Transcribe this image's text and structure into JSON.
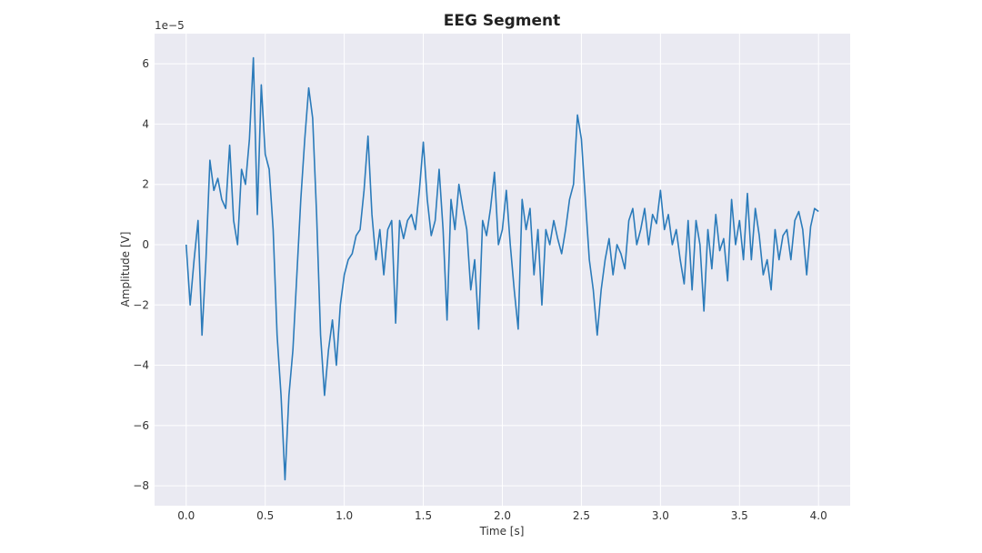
{
  "chart_data": {
    "type": "line",
    "title": "EEG Segment",
    "xlabel": "Time [s]",
    "ylabel": "Amplitude [V]",
    "y_offset_label": "1e−5",
    "xlim": [
      -0.2,
      4.2
    ],
    "ylim": [
      -8.66,
      7.0
    ],
    "xticks": [
      {
        "value": 0,
        "label": "0.0"
      },
      0.5,
      {
        "value": 1,
        "label": "1.0"
      },
      1.5,
      {
        "value": 2,
        "label": "2.0"
      },
      2.5,
      {
        "value": 3,
        "label": "3.0"
      },
      3.5,
      {
        "value": 4,
        "label": "4.0"
      }
    ],
    "yticks": [
      {
        "value": -8,
        "label": "−8"
      },
      {
        "value": -6,
        "label": "−6"
      },
      {
        "value": -4,
        "label": "−4"
      },
      {
        "value": -2,
        "label": "−2"
      },
      0,
      2,
      4,
      6
    ],
    "grid": true,
    "x": [
      0,
      0.025,
      0.05,
      0.075,
      0.1,
      0.125,
      0.15,
      0.175,
      0.2,
      0.225,
      0.25,
      0.275,
      0.3,
      0.325,
      0.35,
      0.375,
      0.4,
      0.425,
      0.45,
      0.475,
      0.5,
      0.525,
      0.55,
      0.575,
      0.6,
      0.625,
      0.65,
      0.675,
      0.7,
      0.725,
      0.75,
      0.775,
      0.8,
      0.825,
      0.85,
      0.875,
      0.9,
      0.925,
      0.95,
      0.975,
      1,
      1.025,
      1.05,
      1.075,
      1.1,
      1.125,
      1.15,
      1.175,
      1.2,
      1.225,
      1.25,
      1.275,
      1.3,
      1.325,
      1.35,
      1.375,
      1.4,
      1.425,
      1.45,
      1.475,
      1.5,
      1.525,
      1.55,
      1.575,
      1.6,
      1.625,
      1.65,
      1.675,
      1.7,
      1.725,
      1.75,
      1.775,
      1.8,
      1.825,
      1.85,
      1.875,
      1.9,
      1.925,
      1.95,
      1.975,
      2,
      2.025,
      2.05,
      2.075,
      2.1,
      2.125,
      2.15,
      2.175,
      2.2,
      2.225,
      2.25,
      2.275,
      2.3,
      2.325,
      2.35,
      2.375,
      2.4,
      2.425,
      2.45,
      2.475,
      2.5,
      2.525,
      2.55,
      2.575,
      2.6,
      2.625,
      2.65,
      2.675,
      2.7,
      2.725,
      2.75,
      2.775,
      2.8,
      2.825,
      2.85,
      2.875,
      2.9,
      2.925,
      2.95,
      2.975,
      3,
      3.025,
      3.05,
      3.075,
      3.1,
      3.125,
      3.15,
      3.175,
      3.2,
      3.225,
      3.25,
      3.275,
      3.3,
      3.325,
      3.35,
      3.375,
      3.4,
      3.425,
      3.45,
      3.475,
      3.5,
      3.525,
      3.55,
      3.575,
      3.6,
      3.625,
      3.65,
      3.675,
      3.7,
      3.725,
      3.75,
      3.775,
      3.8,
      3.825,
      3.85,
      3.875,
      3.9,
      3.925,
      3.95,
      3.975,
      4
    ],
    "series": [
      {
        "color": "#2b7bba",
        "values": [
          0,
          -2,
          -0.5,
          0.8,
          -3,
          -0.5,
          2.8,
          1.8,
          2.2,
          1.5,
          1.2,
          3.3,
          0.8,
          0,
          2.5,
          2.0,
          3.5,
          6.2,
          1.0,
          5.3,
          3.0,
          2.5,
          0.5,
          -3,
          -5,
          -7.8,
          -5,
          -3.5,
          -1,
          1.5,
          3.5,
          5.2,
          4.2,
          1,
          -3,
          -5,
          -3.5,
          -2.5,
          -4,
          -2,
          -1,
          -0.5,
          -0.3,
          0.3,
          0.5,
          1.8,
          3.6,
          1,
          -0.5,
          0.5,
          -1,
          0.5,
          0.8,
          -2.6,
          0.8,
          0.2,
          0.8,
          1,
          0.5,
          1.8,
          3.4,
          1.5,
          0.3,
          0.8,
          2.5,
          0.5,
          -2.5,
          1.5,
          0.5,
          2,
          1.2,
          0.5,
          -1.5,
          -0.5,
          -2.8,
          0.8,
          0.3,
          1.2,
          2.4,
          0,
          0.5,
          1.8,
          0,
          -1.5,
          -2.8,
          1.5,
          0.5,
          1.2,
          -1,
          0.5,
          -2,
          0.5,
          0,
          0.8,
          0.2,
          -0.3,
          0.5,
          1.5,
          2,
          4.3,
          3.5,
          1.5,
          -0.5,
          -1.5,
          -3,
          -1.5,
          -0.5,
          0.2,
          -1,
          0,
          -0.3,
          -0.8,
          0.8,
          1.2,
          0,
          0.5,
          1.2,
          0,
          1,
          0.7,
          1.8,
          0.5,
          1,
          0,
          0.5,
          -0.5,
          -1.3,
          0.8,
          -1.5,
          0.8,
          0,
          -2.2,
          0.5,
          -0.8,
          1,
          -0.2,
          0.2,
          -1.2,
          1.5,
          0,
          0.8,
          -0.5,
          1.7,
          -0.5,
          1.2,
          0.3,
          -1,
          -0.5,
          -1.5,
          0.5,
          -0.5,
          0.3,
          0.5,
          -0.5,
          0.8,
          1.1,
          0.5,
          -1,
          0.6,
          1.2,
          1.1
        ]
      }
    ]
  }
}
